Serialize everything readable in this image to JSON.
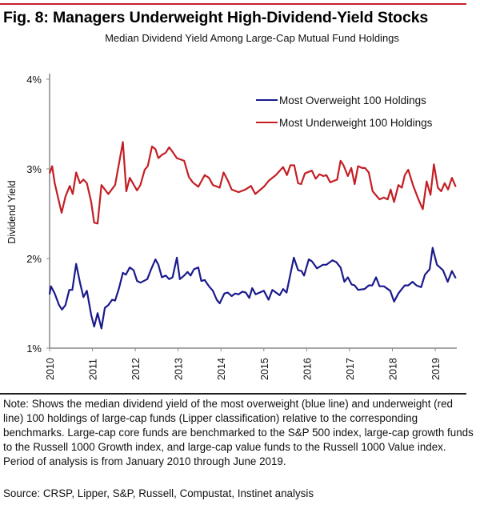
{
  "chart_data": {
    "type": "line",
    "title": "Fig. 8: Managers Underweight High-Dividend-Yield Stocks",
    "subtitle": "Median Dividend Yield Among Large-Cap Mutual Fund Holdings",
    "xlabel": "",
    "ylabel": "Dividend Yield",
    "xlim": [
      2010,
      2019.5
    ],
    "ylim": [
      1,
      4
    ],
    "xticks": [
      "2010",
      "2011",
      "2012",
      "2013",
      "2014",
      "2015",
      "2016",
      "2017",
      "2018",
      "2019"
    ],
    "yticks": [
      "1%",
      "2%",
      "3%",
      "4%"
    ],
    "grid": false,
    "legend_position": "top-right",
    "series": [
      {
        "name": "Most Overweight 100 Holdings",
        "color": "#1a1a8c",
        "x": [
          2010,
          2010.03,
          2010.12,
          2010.22,
          2010.29,
          2010.37,
          2010.46,
          2010.53,
          2010.62,
          2010.71,
          2010.79,
          2010.87,
          2010.97,
          2011.04,
          2011.12,
          2011.21,
          2011.29,
          2011.37,
          2011.46,
          2011.53,
          2011.62,
          2011.71,
          2011.78,
          2011.87,
          2011.96,
          2012.04,
          2012.12,
          2012.28,
          2012.37,
          2012.47,
          2012.54,
          2012.62,
          2012.71,
          2012.79,
          2012.87,
          2012.97,
          2013.04,
          2013.14,
          2013.22,
          2013.29,
          2013.37,
          2013.47,
          2013.54,
          2013.62,
          2013.72,
          2013.81,
          2013.9,
          2013.97,
          2014.08,
          2014.16,
          2014.25,
          2014.33,
          2014.41,
          2014.5,
          2014.58,
          2014.66,
          2014.73,
          2014.81,
          2015,
          2015.11,
          2015.2,
          2015.37,
          2015.45,
          2015.53,
          2015.7,
          2015.8,
          2015.88,
          2015.94,
          2016.05,
          2016.12,
          2016.24,
          2016.38,
          2016.46,
          2016.6,
          2016.69,
          2016.79,
          2016.88,
          2016.96,
          2017.05,
          2017.12,
          2017.2,
          2017.35,
          2017.45,
          2017.53,
          2017.62,
          2017.7,
          2017.8,
          2017.95,
          2018.04,
          2018.14,
          2018.22,
          2018.29,
          2018.37,
          2018.47,
          2018.56,
          2018.67,
          2018.76,
          2018.87,
          2018.94,
          2019.04,
          2019.18,
          2019.29,
          2019.39,
          2019.48
        ],
        "values": [
          1.6,
          1.69,
          1.61,
          1.48,
          1.43,
          1.48,
          1.65,
          1.65,
          1.94,
          1.73,
          1.57,
          1.64,
          1.37,
          1.24,
          1.39,
          1.22,
          1.45,
          1.48,
          1.54,
          1.53,
          1.67,
          1.84,
          1.82,
          1.9,
          1.87,
          1.75,
          1.73,
          1.77,
          1.88,
          1.99,
          1.93,
          1.79,
          1.81,
          1.77,
          1.79,
          2.01,
          1.77,
          1.81,
          1.85,
          1.81,
          1.88,
          1.9,
          1.75,
          1.76,
          1.69,
          1.64,
          1.54,
          1.5,
          1.61,
          1.62,
          1.58,
          1.61,
          1.6,
          1.63,
          1.62,
          1.56,
          1.67,
          1.6,
          1.64,
          1.54,
          1.65,
          1.59,
          1.66,
          1.62,
          2.01,
          1.87,
          1.86,
          1.81,
          1.99,
          1.97,
          1.89,
          1.93,
          1.93,
          1.98,
          1.96,
          1.9,
          1.74,
          1.79,
          1.71,
          1.7,
          1.65,
          1.66,
          1.7,
          1.7,
          1.79,
          1.69,
          1.69,
          1.64,
          1.52,
          1.61,
          1.66,
          1.7,
          1.7,
          1.74,
          1.7,
          1.68,
          1.82,
          1.88,
          2.12,
          1.93,
          1.87,
          1.74,
          1.86,
          1.78
        ]
      },
      {
        "name": "Most Underweight 100 Holdings",
        "color": "#c41e24",
        "x": [
          2010,
          2010.06,
          2010.12,
          2010.28,
          2010.37,
          2010.47,
          2010.54,
          2010.62,
          2010.71,
          2010.79,
          2010.87,
          2010.97,
          2011.04,
          2011.12,
          2011.21,
          2011.37,
          2011.53,
          2011.71,
          2011.79,
          2011.87,
          2012.04,
          2012.12,
          2012.22,
          2012.29,
          2012.39,
          2012.47,
          2012.54,
          2012.63,
          2012.71,
          2012.79,
          2012.87,
          2012.97,
          2013.14,
          2013.25,
          2013.34,
          2013.47,
          2013.62,
          2013.72,
          2013.81,
          2013.97,
          2014.06,
          2014.16,
          2014.25,
          2014.41,
          2014.57,
          2014.7,
          2014.8,
          2015,
          2015.12,
          2015.28,
          2015.45,
          2015.54,
          2015.62,
          2015.71,
          2015.8,
          2015.87,
          2015.96,
          2016.12,
          2016.21,
          2016.3,
          2016.39,
          2016.46,
          2016.55,
          2016.71,
          2016.79,
          2016.86,
          2016.96,
          2017.04,
          2017.12,
          2017.2,
          2017.29,
          2017.36,
          2017.45,
          2017.54,
          2017.7,
          2017.8,
          2017.89,
          2017.96,
          2018.04,
          2018.14,
          2018.22,
          2018.29,
          2018.37,
          2018.48,
          2018.6,
          2018.71,
          2018.8,
          2018.89,
          2018.97,
          2019.06,
          2019.14,
          2019.22,
          2019.3,
          2019.39,
          2019.48
        ],
        "values": [
          2.95,
          3.03,
          2.84,
          2.51,
          2.69,
          2.81,
          2.72,
          2.96,
          2.84,
          2.88,
          2.84,
          2.63,
          2.4,
          2.39,
          2.82,
          2.72,
          2.82,
          3.3,
          2.75,
          2.9,
          2.76,
          2.82,
          2.99,
          3.03,
          3.25,
          3.22,
          3.12,
          3.16,
          3.18,
          3.24,
          3.19,
          3.12,
          3.09,
          2.91,
          2.85,
          2.8,
          2.93,
          2.9,
          2.82,
          2.79,
          2.96,
          2.87,
          2.77,
          2.74,
          2.77,
          2.81,
          2.72,
          2.8,
          2.87,
          2.93,
          3.02,
          2.93,
          3.04,
          3.04,
          2.84,
          2.83,
          2.95,
          2.98,
          2.89,
          2.94,
          2.92,
          2.93,
          2.85,
          2.88,
          3.09,
          3.04,
          2.92,
          3.01,
          2.83,
          3.03,
          3.01,
          3.01,
          2.96,
          2.75,
          2.66,
          2.68,
          2.66,
          2.77,
          2.63,
          2.82,
          2.79,
          2.93,
          2.99,
          2.82,
          2.67,
          2.55,
          2.86,
          2.71,
          3.05,
          2.79,
          2.75,
          2.84,
          2.77,
          2.9,
          2.8
        ]
      }
    ]
  },
  "note": "Note: Shows the median dividend yield of the most overweight (blue line) and underweight (red line) 100 holdings of large-cap funds (Lipper classification) relative to the corresponding benchmarks. Large-cap core funds are benchmarked to the S&P 500 index, large-cap growth funds to the Russell 1000 Growth index, and large-cap value funds to the Russell 1000 Value index. Period of analysis is from January 2010 through June 2019.",
  "source": "Source: CRSP, Lipper, S&P, Russell, Compustat, Instinet analysis"
}
